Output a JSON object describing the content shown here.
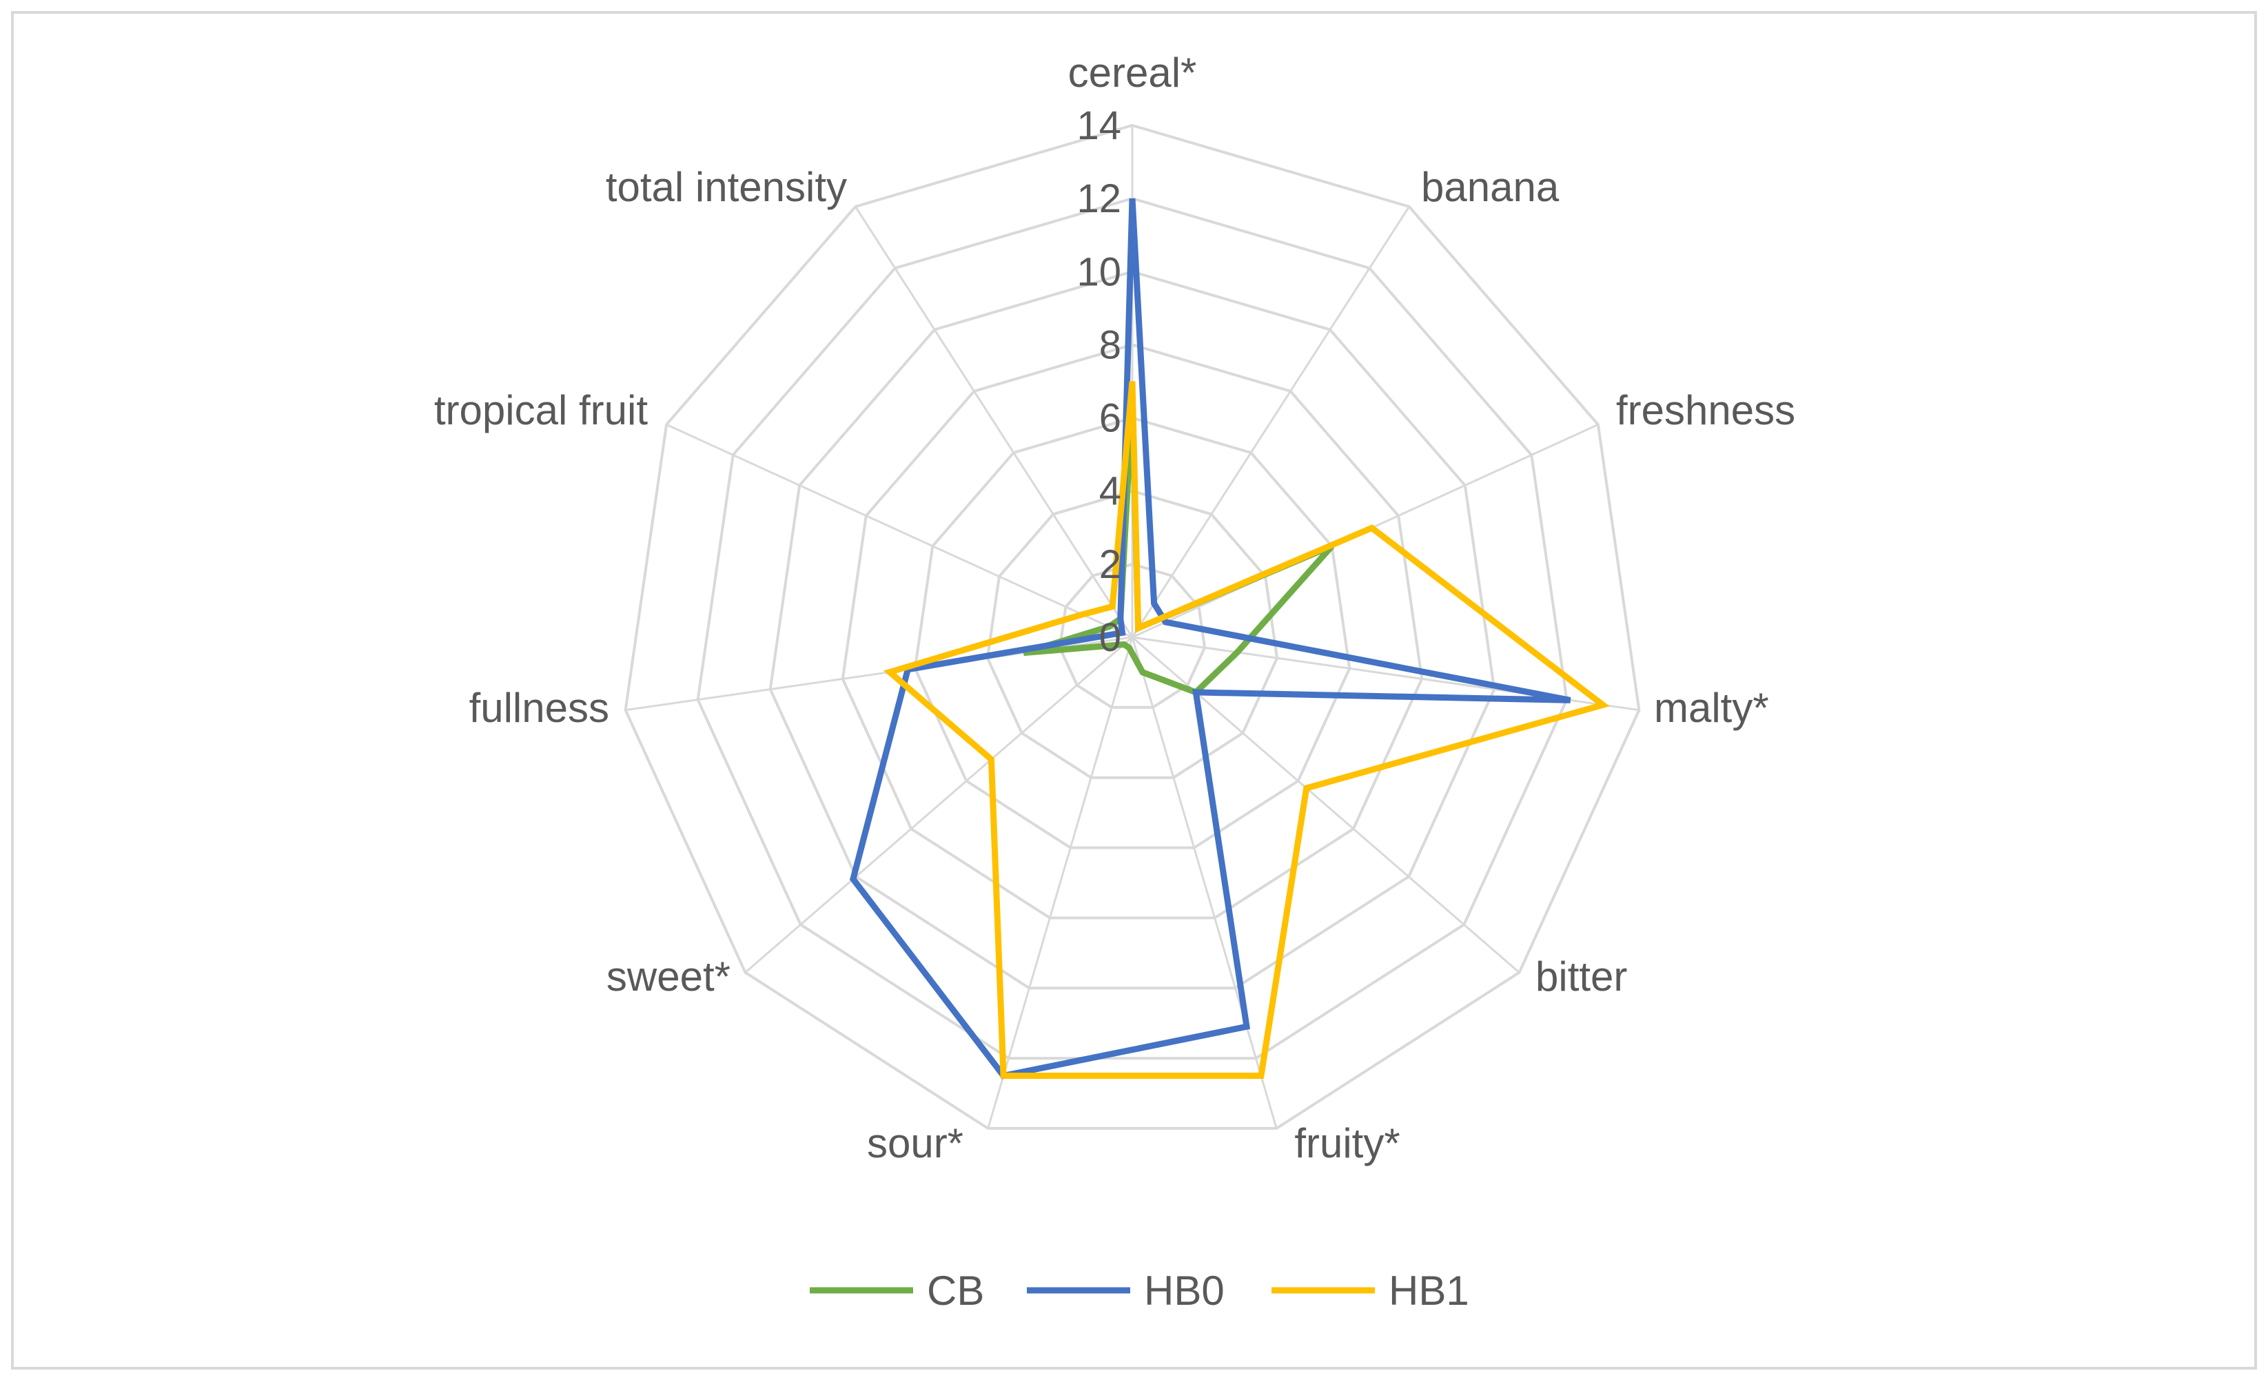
{
  "chart_data": {
    "type": "radar",
    "title": "",
    "categories": [
      "cereal*",
      "banana",
      "freshness",
      "malty*",
      "bitter",
      "fruity*",
      "sour*",
      "sweet*",
      "fullness",
      "tropical fruit",
      "total intensity"
    ],
    "rlim": [
      0,
      14
    ],
    "ticks": [
      "0",
      "2",
      "4",
      "6",
      "8",
      "10",
      "12",
      "14"
    ],
    "grid": true,
    "legend_position": "bottom",
    "series": [
      {
        "name": "CB",
        "color": "#70ad47",
        "values": [
          6.5,
          0.3,
          6.0,
          2.9,
          2.3,
          1.0,
          0.3,
          0.3,
          3.0,
          0.7,
          0.6
        ]
      },
      {
        "name": "HB0",
        "color": "#4472c4",
        "values": [
          12.0,
          1.1,
          1.0,
          12.1,
          2.3,
          11.1,
          12.5,
          10.1,
          6.2,
          0.3,
          0.6
        ]
      },
      {
        "name": "HB1",
        "color": "#ffc000",
        "values": [
          7.0,
          0.3,
          7.2,
          13.0,
          6.3,
          12.5,
          12.5,
          5.1,
          6.7,
          1.5,
          1.0
        ]
      }
    ]
  }
}
